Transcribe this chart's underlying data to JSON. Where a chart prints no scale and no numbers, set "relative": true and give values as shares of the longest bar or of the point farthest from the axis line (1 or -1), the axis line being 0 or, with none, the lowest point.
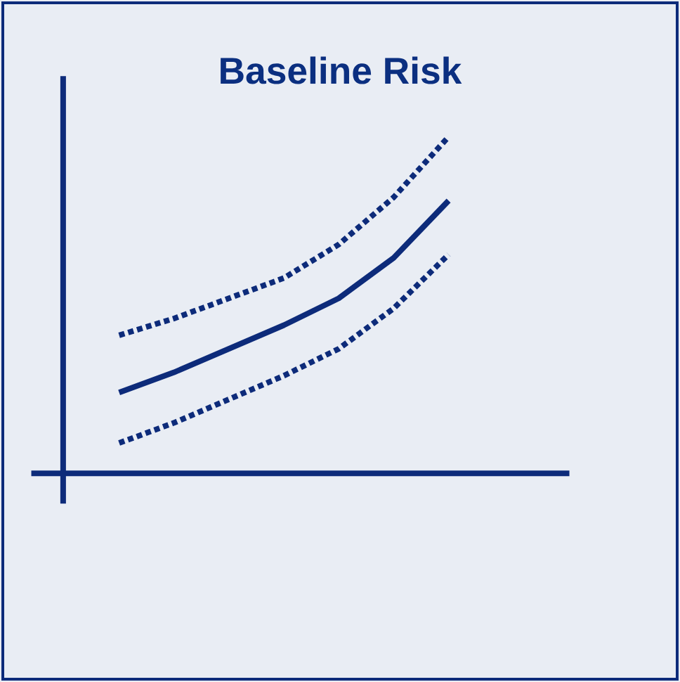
{
  "chart_data": {
    "type": "line",
    "title": "Baseline Risk",
    "relative": true,
    "categories": [
      null,
      null,
      null,
      null,
      null,
      null,
      null
    ],
    "series": [
      {
        "color": "#0d2b7a",
        "line_style": "dotted",
        "values": [
          0.41,
          0.46,
          0.52,
          0.58,
          0.68,
          0.82,
          1
        ]
      },
      {
        "color": "#0d2b7a",
        "line_style": "solid",
        "values": [
          0.24,
          0.3,
          0.37,
          0.44,
          0.52,
          0.64,
          0.81
        ]
      },
      {
        "color": "#0d2b7a",
        "line_style": "dotted",
        "values": [
          0.09,
          0.15,
          0.22,
          0.29,
          0.37,
          0.49,
          0.65
        ]
      }
    ]
  }
}
